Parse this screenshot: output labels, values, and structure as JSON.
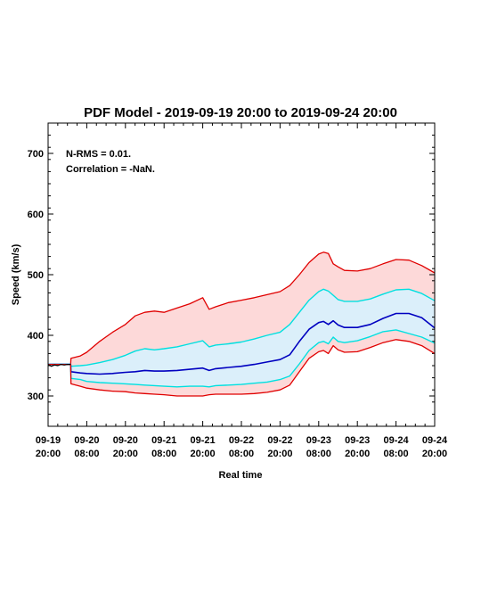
{
  "chart_data": {
    "type": "line",
    "title": "PDF Model - 2019-09-19 20:00 to 2019-09-24 20:00",
    "xlabel": "Real time",
    "ylabel": "Speed (km/s)",
    "x_unit": "hours since 2019-09-19 20:00",
    "xlim": [
      0,
      120
    ],
    "ylim": [
      250,
      750
    ],
    "yticks": [
      300,
      400,
      500,
      600,
      700
    ],
    "xticks": [
      {
        "x": 0,
        "line1": "09-19",
        "line2": "20:00"
      },
      {
        "x": 12,
        "line1": "09-20",
        "line2": "08:00"
      },
      {
        "x": 24,
        "line1": "09-20",
        "line2": "20:00"
      },
      {
        "x": 36,
        "line1": "09-21",
        "line2": "08:00"
      },
      {
        "x": 48,
        "line1": "09-21",
        "line2": "20:00"
      },
      {
        "x": 60,
        "line1": "09-22",
        "line2": "08:00"
      },
      {
        "x": 72,
        "line1": "09-22",
        "line2": "20:00"
      },
      {
        "x": 84,
        "line1": "09-23",
        "line2": "08:00"
      },
      {
        "x": 96,
        "line1": "09-23",
        "line2": "20:00"
      },
      {
        "x": 108,
        "line1": "09-24",
        "line2": "08:00"
      },
      {
        "x": 120,
        "line1": "09-24",
        "line2": "20:00"
      }
    ],
    "annotations": [
      "N-RMS = 0.01.",
      "Correlation = -NaN."
    ],
    "colors": {
      "outer": "#e00000",
      "inner": "#00e0e0",
      "median": "#0000c0",
      "outer_fill": "#fdd9d9",
      "inner_fill": "#dbeffa",
      "observed": "#000000"
    },
    "x": [
      0,
      7,
      7.1,
      10,
      12,
      16,
      20,
      24,
      27,
      30,
      33,
      36,
      40,
      44,
      48,
      50,
      52,
      56,
      60,
      64,
      68,
      72,
      75,
      78,
      81,
      84,
      85.5,
      87,
      88.5,
      90,
      92,
      96,
      100,
      104,
      108,
      112,
      116,
      120
    ],
    "series": [
      {
        "role": "outer_upper",
        "values": [
          352,
          352,
          362,
          366,
          372,
          390,
          405,
          418,
          432,
          438,
          440,
          438,
          445,
          452,
          462,
          443,
          447,
          454,
          458,
          462,
          467,
          472,
          482,
          500,
          520,
          534,
          537,
          535,
          518,
          513,
          507,
          506,
          510,
          518,
          525,
          524,
          515,
          503
        ]
      },
      {
        "role": "inner_upper",
        "values": [
          352,
          352,
          349,
          350,
          351,
          355,
          360,
          367,
          374,
          378,
          376,
          378,
          381,
          386,
          391,
          381,
          384,
          386,
          389,
          394,
          400,
          405,
          418,
          438,
          458,
          472,
          476,
          473,
          466,
          459,
          456,
          456,
          460,
          468,
          475,
          476,
          469,
          457
        ]
      },
      {
        "role": "median",
        "values": [
          352,
          352,
          340,
          338,
          337,
          336,
          337,
          339,
          340,
          342,
          341,
          341,
          342,
          344,
          346,
          342,
          345,
          347,
          349,
          352,
          356,
          360,
          368,
          390,
          410,
          421,
          423,
          418,
          424,
          417,
          413,
          413,
          418,
          428,
          436,
          436,
          429,
          412
        ]
      },
      {
        "role": "inner_lower",
        "values": [
          352,
          352,
          329,
          327,
          324,
          322,
          321,
          320,
          319,
          318,
          317,
          316,
          315,
          316,
          316,
          315,
          317,
          318,
          319,
          321,
          323,
          327,
          333,
          353,
          375,
          388,
          390,
          386,
          397,
          390,
          388,
          391,
          398,
          406,
          409,
          403,
          397,
          387
        ]
      },
      {
        "role": "outer_lower",
        "values": [
          352,
          352,
          320,
          316,
          313,
          310,
          308,
          307,
          305,
          304,
          303,
          302,
          300,
          300,
          300,
          302,
          303,
          303,
          303,
          304,
          306,
          310,
          318,
          340,
          362,
          373,
          375,
          370,
          383,
          376,
          372,
          373,
          380,
          388,
          393,
          390,
          383,
          370
        ]
      }
    ],
    "observed": {
      "name": "observed",
      "x": [
        0,
        1,
        2,
        3,
        4,
        5,
        6,
        7
      ],
      "values": [
        352,
        349,
        351,
        350,
        352,
        351,
        352,
        352
      ]
    }
  }
}
